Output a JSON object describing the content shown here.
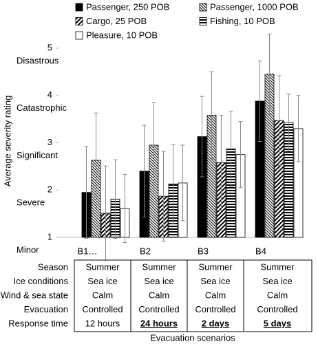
{
  "chart_data": {
    "type": "bar",
    "y_title": "Average severity rating",
    "x_title": "Evacuation scenarios",
    "categories": [
      "B1…",
      "B2",
      "B3",
      "B4"
    ],
    "ylim": [
      1,
      5
    ],
    "yticks": [
      1,
      2,
      3,
      4,
      5
    ],
    "y_level_labels": [
      "Minor",
      "Severe",
      "Significant",
      "Catastrophic",
      "Disastrous"
    ],
    "legend": "top",
    "series": [
      {
        "name": "Passenger, 250 POB",
        "color": "#000000",
        "pattern": "solid",
        "values": [
          1.95,
          2.4,
          3.13,
          3.88
        ],
        "errors": [
          0.97,
          0.97,
          0.85,
          0.85
        ]
      },
      {
        "name": "Passenger, 1000 POB",
        "color": "#000000",
        "pattern": "back-diagonal",
        "values": [
          2.63,
          2.95,
          3.58,
          4.45
        ],
        "errors": [
          1.0,
          0.9,
          0.92,
          0.85
        ]
      },
      {
        "name": "Cargo, 25 POB",
        "color": "#000000",
        "pattern": "diagonal",
        "values": [
          1.51,
          1.87,
          2.58,
          3.47
        ],
        "errors": [
          1.0,
          0.95,
          1.0,
          0.95
        ]
      },
      {
        "name": "Fishing, 10 POB",
        "color": "#000000",
        "pattern": "horizontal",
        "values": [
          1.81,
          2.13,
          2.87,
          3.43
        ],
        "errors": [
          0.83,
          0.83,
          0.8,
          0.6
        ]
      },
      {
        "name": "Pleasure, 10 POB",
        "color": "#000000",
        "pattern": "none",
        "values": [
          1.61,
          2.15,
          2.75,
          3.3
        ],
        "errors": [
          0.72,
          0.8,
          0.7,
          0.7
        ]
      }
    ]
  },
  "table": {
    "row_labels": [
      "Season",
      "Ice conditions",
      "Wind & sea state",
      "Evacuation",
      "Response time"
    ],
    "columns": [
      [
        "Summer",
        "Sea ice",
        "Calm",
        "Controlled",
        "12 hours"
      ],
      [
        "Summer",
        "Sea ice",
        "Calm",
        "Controlled",
        "24 hours"
      ],
      [
        "Summer",
        "Sea ice",
        "Calm",
        "Controlled",
        "2 days"
      ],
      [
        "Summer",
        "Sea ice",
        "Calm",
        "Controlled",
        "5 days"
      ]
    ],
    "emphasized_last_row": [
      false,
      true,
      true,
      true
    ]
  }
}
